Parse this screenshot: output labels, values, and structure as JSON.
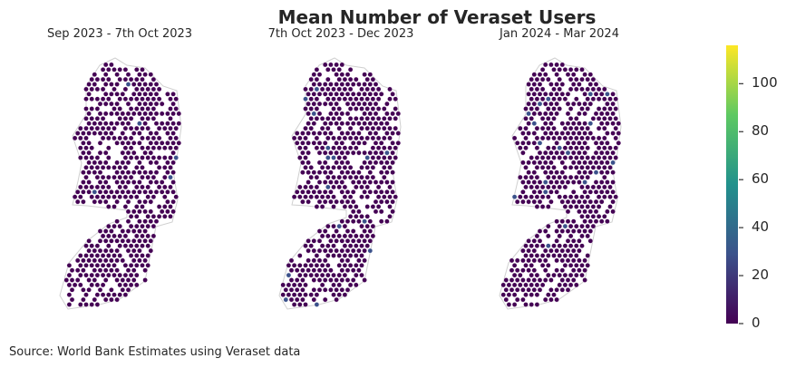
{
  "title": "Mean Number of Veraset Users",
  "panels": [
    {
      "title": "Sep 2023 - 7th Oct 2023"
    },
    {
      "title": "7th Oct 2023 - Dec 2023"
    },
    {
      "title": "Jan 2024 - Mar 2024"
    }
  ],
  "colorbar": {
    "colormap": "viridis",
    "range": [
      0,
      116
    ],
    "ticks": [
      "0",
      "20",
      "40",
      "60",
      "80",
      "100"
    ],
    "colors": [
      "#440154",
      "#3b528b",
      "#21918c",
      "#5ec962",
      "#fde725"
    ]
  },
  "source": "Source: World Bank Estimates using Veraset data",
  "chart_data": {
    "type": "heatmap",
    "title": "Mean Number of Veraset Users",
    "subplots": [
      "Sep 2023 - 7th Oct 2023",
      "7th Oct 2023 - Dec 2023",
      "Jan 2024 - Mar 2024"
    ],
    "colorbar_range": [
      0,
      116
    ],
    "colorbar_ticks": [
      0,
      20,
      40,
      60,
      80,
      100
    ]
  }
}
